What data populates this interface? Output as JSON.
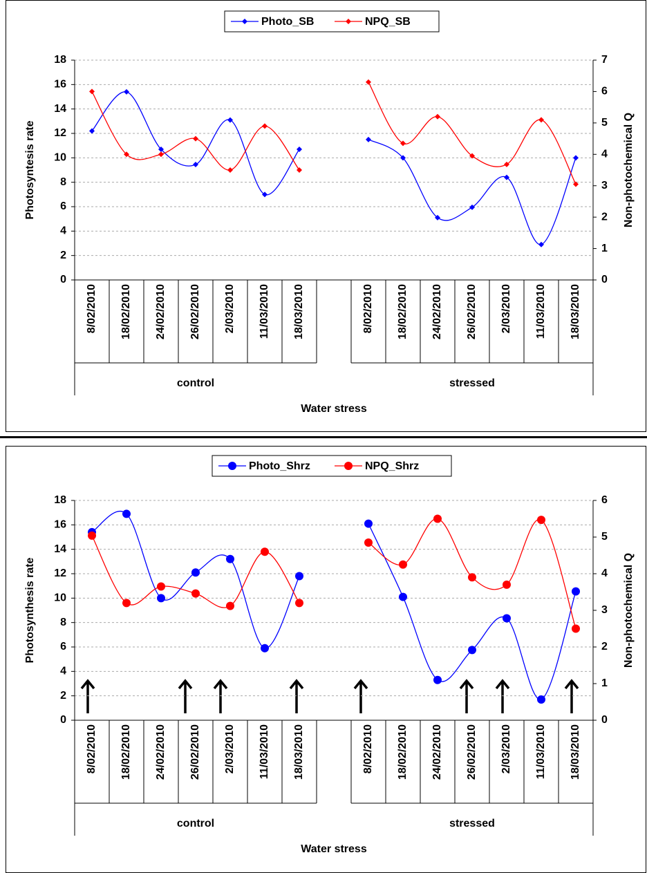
{
  "chart_data": [
    {
      "type": "line",
      "x_label": "Water stress",
      "y_label": "Photosyntesis rate",
      "y2_label": "Non-photochemical Q",
      "categories": [
        "8/02/2010",
        "18/02/2010",
        "24/02/2010",
        "26/02/2010",
        "2/03/2010",
        "11/03/2010",
        "18/03/2010",
        null,
        "8/02/2010",
        "18/02/2010",
        "24/02/2010",
        "26/02/2010",
        "2/03/2010",
        "11/03/2010",
        "18/03/2010"
      ],
      "category_groups": [
        "control",
        "stressed"
      ],
      "series": [
        {
          "name": "Photo_SB",
          "color": "#0000ff",
          "marker": "diamond",
          "values": [
            12.2,
            15.4,
            10.7,
            9.45,
            13.1,
            7.0,
            10.7,
            null,
            11.5,
            10.0,
            5.1,
            5.95,
            8.4,
            2.9,
            10.0
          ]
        },
        {
          "name": "NPQ_SB",
          "color": "#ff0000",
          "marker": "diamond",
          "axis": "y2",
          "values": [
            6.0,
            4.0,
            4.0,
            4.5,
            3.5,
            4.9,
            3.5,
            null,
            6.3,
            4.35,
            5.2,
            3.95,
            3.68,
            5.1,
            3.05
          ]
        }
      ],
      "ylim": [
        0,
        18
      ],
      "yticks": [
        0,
        2,
        4,
        6,
        8,
        10,
        12,
        14,
        16,
        18
      ],
      "y2lim": [
        0,
        7
      ],
      "y2ticks": [
        0,
        1,
        2,
        3,
        4,
        5,
        6,
        7
      ],
      "grid": true,
      "legend": "top"
    },
    {
      "type": "line",
      "x_label": "Water stress",
      "y_label": "Photosynthesis rate",
      "y2_label": "Non-photochemical Q",
      "categories": [
        "8/02/2010",
        "18/02/2010",
        "24/02/2010",
        "26/02/2010",
        "2/03/2010",
        "11/03/2010",
        "18/03/2010",
        null,
        "8/02/2010",
        "18/02/2010",
        "24/02/2010",
        "26/02/2010",
        "2/03/2010",
        "11/03/2010",
        "18/03/2010"
      ],
      "category_groups": [
        "control",
        "stressed"
      ],
      "series": [
        {
          "name": "Photo_Shrz",
          "color": "#0000ff",
          "marker": "circle",
          "values": [
            15.4,
            16.9,
            10.0,
            12.1,
            13.2,
            5.9,
            11.8,
            null,
            16.1,
            10.1,
            3.3,
            5.75,
            8.35,
            1.7,
            10.55
          ]
        },
        {
          "name": "NPQ_Shrz",
          "color": "#ff0000",
          "marker": "circle",
          "axis": "y2",
          "values": [
            5.04,
            3.2,
            3.65,
            3.46,
            3.12,
            4.6,
            3.2,
            null,
            4.85,
            4.25,
            5.5,
            3.9,
            3.7,
            5.47,
            2.5
          ]
        }
      ],
      "ylim": [
        0,
        18
      ],
      "yticks": [
        0,
        2,
        4,
        6,
        8,
        10,
        12,
        14,
        16,
        18
      ],
      "y2lim": [
        0,
        6
      ],
      "y2ticks": [
        0,
        1,
        2,
        3,
        4,
        5,
        6
      ],
      "grid": true,
      "legend": "top"
    }
  ]
}
